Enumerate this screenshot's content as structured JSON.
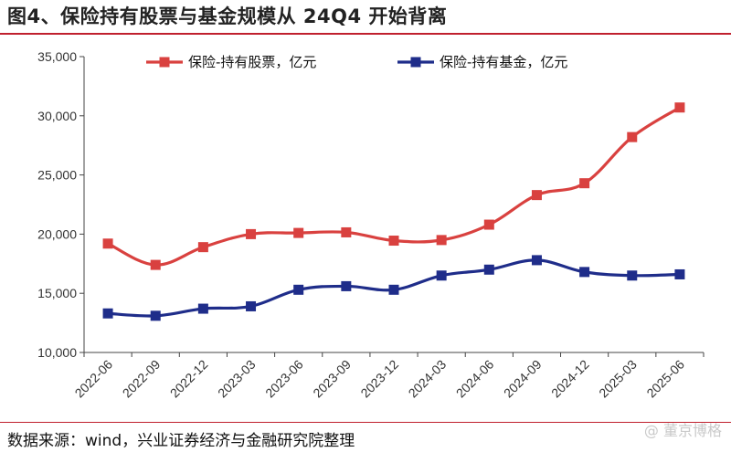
{
  "page": {
    "title": "图4、保险持有股票与基金规模从 24Q4 开始背离",
    "source": "数据来源：wind，兴业证券经济与金融研究院整理",
    "watermark": "@ 董京博格"
  },
  "chart_data": {
    "type": "line",
    "title": "",
    "xlabel": "",
    "ylabel": "",
    "categories": [
      "2022-06",
      "2022-09",
      "2022-12",
      "2023-03",
      "2023-06",
      "2023-09",
      "2023-12",
      "2024-03",
      "2024-06",
      "2024-09",
      "2024-12",
      "2025-03",
      "2025-06"
    ],
    "ylim": [
      10000,
      35000
    ],
    "yticks": [
      10000,
      15000,
      20000,
      25000,
      30000,
      35000
    ],
    "ytick_labels": [
      "10,000",
      "15,000",
      "20,000",
      "25,000",
      "30,000",
      "35,000"
    ],
    "grid": false,
    "legend_position": "top",
    "series": [
      {
        "name": "保险-持有股票，亿元",
        "color": "#d9413f",
        "marker": "square",
        "values": [
          19200,
          17400,
          18900,
          20000,
          20100,
          20150,
          19450,
          19500,
          20800,
          23300,
          24300,
          28200,
          30700
        ]
      },
      {
        "name": "保险-持有基金，亿元",
        "color": "#1f2d8a",
        "marker": "square",
        "values": [
          13300,
          13100,
          13700,
          13900,
          15300,
          15600,
          15300,
          16500,
          17000,
          17800,
          16800,
          16500,
          16600
        ]
      }
    ]
  }
}
